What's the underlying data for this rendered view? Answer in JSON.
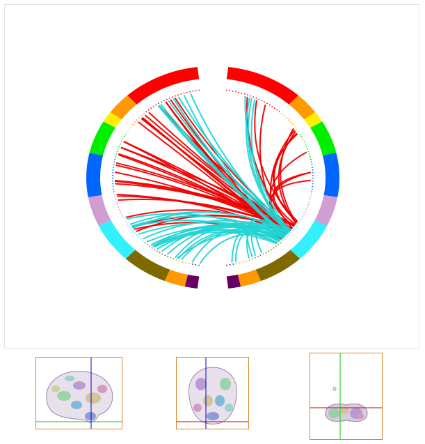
{
  "colors": {
    "red": "#ff0000",
    "orange": "#ff9900",
    "yellow": "#ffee00",
    "green": "#00ee00",
    "blue": "#0066ff",
    "pink": "#d09ed0",
    "cyan": "#33f0ff",
    "olive": "#7f6a00",
    "purple": "#660066",
    "link_red": "#ee0000",
    "link_cyan": "#22d4d4",
    "crosshair_red": "#cc0000",
    "crosshair_green": "#00cc00",
    "crosshair_blue": "#0000cc",
    "view_border": "#d9852a"
  },
  "chord": {
    "segments_right": [
      "red",
      "orange",
      "yellow",
      "green",
      "blue",
      "pink",
      "cyan",
      "olive",
      "orange",
      "purple"
    ],
    "segments_left": [
      "red",
      "orange",
      "yellow",
      "green",
      "blue",
      "pink",
      "cyan",
      "olive",
      "orange",
      "purple"
    ],
    "links_red": 42,
    "links_cyan": 40
  },
  "views": {
    "sagittal": {
      "icon": "brain-sagittal-icon"
    },
    "coronal": {
      "icon": "brain-coronal-icon"
    },
    "axial": {
      "icon": "brain-axial-icon"
    }
  }
}
